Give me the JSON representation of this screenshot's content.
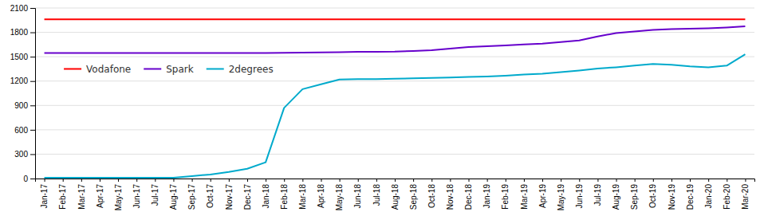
{
  "chart_data": {
    "type": "line",
    "categories": [
      "Jan-17",
      "Feb-17",
      "Mar-17",
      "Apr-17",
      "May-17",
      "Jun-17",
      "Jul-17",
      "Aug-17",
      "Sep-17",
      "Oct-17",
      "Nov-17",
      "Dec-17",
      "Jan-18",
      "Feb-18",
      "Mar-18",
      "Apr-18",
      "May-18",
      "Jun-18",
      "Jul-18",
      "Aug-18",
      "Sep-18",
      "Oct-18",
      "Nov-18",
      "Dec-18",
      "Jan-19",
      "Feb-19",
      "Mar-19",
      "Apr-19",
      "May-19",
      "Jun-19",
      "Jul-19",
      "Aug-19",
      "Sep-19",
      "Oct-19",
      "Nov-19",
      "Dec-19",
      "Jan-20",
      "Feb-20",
      "Mar-20"
    ],
    "series": [
      {
        "name": "Vodafone",
        "color": "#ff0000",
        "values": [
          1960,
          1960,
          1960,
          1960,
          1960,
          1960,
          1960,
          1960,
          1960,
          1960,
          1960,
          1960,
          1960,
          1960,
          1960,
          1960,
          1960,
          1960,
          1960,
          1960,
          1960,
          1960,
          1960,
          1960,
          1960,
          1960,
          1960,
          1960,
          1960,
          1960,
          1960,
          1960,
          1960,
          1960,
          1960,
          1960,
          1960,
          1960,
          1960
        ]
      },
      {
        "name": "Spark",
        "color": "#6600cc",
        "values": [
          1545,
          1545,
          1545,
          1545,
          1545,
          1545,
          1545,
          1545,
          1545,
          1545,
          1545,
          1545,
          1545,
          1548,
          1550,
          1552,
          1555,
          1560,
          1560,
          1562,
          1570,
          1580,
          1600,
          1620,
          1630,
          1640,
          1650,
          1660,
          1680,
          1700,
          1750,
          1790,
          1810,
          1830,
          1840,
          1845,
          1850,
          1860,
          1875
        ]
      },
      {
        "name": "2degrees",
        "color": "#00aacc",
        "values": [
          10,
          10,
          10,
          10,
          10,
          10,
          10,
          10,
          30,
          50,
          80,
          120,
          200,
          870,
          1100,
          1160,
          1220,
          1225,
          1225,
          1228,
          1235,
          1240,
          1245,
          1250,
          1255,
          1265,
          1280,
          1290,
          1310,
          1330,
          1355,
          1370,
          1390,
          1410,
          1400,
          1380,
          1370,
          1390,
          1530
        ]
      }
    ],
    "ylim": [
      0,
      2100
    ],
    "yticks": [
      0,
      300,
      600,
      900,
      1200,
      1500,
      1800,
      2100
    ],
    "grid": true,
    "legend": "upper left"
  }
}
